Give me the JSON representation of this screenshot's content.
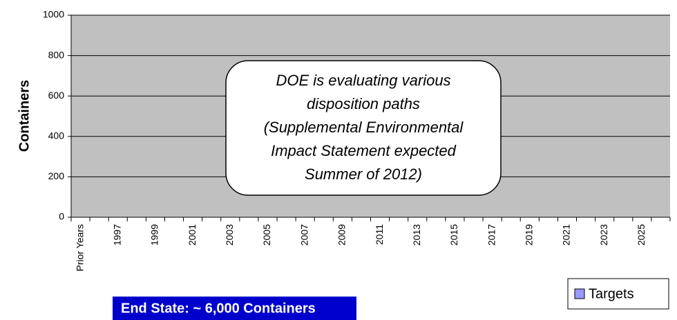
{
  "chart_data": {
    "type": "bar",
    "y_label": "Containers",
    "categories": [
      "Prior Years",
      null,
      "1997",
      null,
      "1999",
      null,
      "2001",
      null,
      "2003",
      null,
      "2005",
      null,
      "2007",
      null,
      "2009",
      null,
      "2011",
      null,
      "2013",
      null,
      "2015",
      null,
      "2017",
      null,
      "2019",
      null,
      "2021",
      null,
      "2023",
      null,
      "2025",
      null
    ],
    "series": [
      {
        "name": "Targets",
        "color": "#9999ff",
        "values": [
          null,
          null,
          null,
          null,
          null,
          null,
          null,
          null,
          null,
          null,
          null,
          null,
          null,
          null,
          null,
          null,
          null,
          null,
          null,
          null,
          null,
          null,
          null,
          null,
          null,
          null,
          null,
          null,
          null,
          null,
          null,
          null
        ]
      }
    ],
    "ylim": [
      0,
      1000
    ],
    "yticks": [
      0,
      200,
      400,
      600,
      800,
      1000
    ],
    "grid": true,
    "legend": "bottom-right",
    "annotation": [
      "DOE is evaluating various",
      "disposition paths",
      "(Supplemental Environmental",
      "Impact Statement expected",
      "Summer of 2012)"
    ],
    "end_state": "End State: ~ 6,000  Containers"
  }
}
